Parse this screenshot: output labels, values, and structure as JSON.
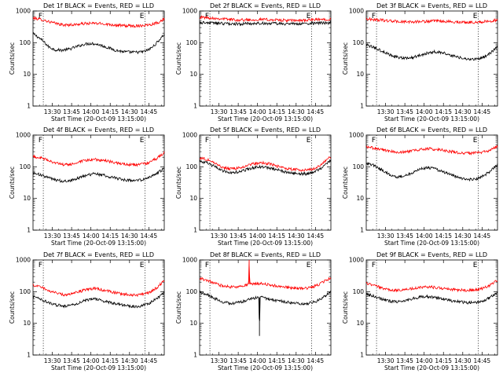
{
  "figure": {
    "tick_times": [
      "13:30",
      "13:45",
      "14:00",
      "14:15",
      "14:30",
      "14:45"
    ],
    "y_ticks": [
      "1",
      "10",
      "100",
      "1000"
    ],
    "y_label": "Counts/sec",
    "x_label": "Start Time (20-Oct-09 13:15:00)",
    "marker_start": "F",
    "marker_end": "E",
    "colors": {
      "events": "#000000",
      "lld": "#ff0000",
      "axes": "#000000"
    }
  },
  "chart_data": [
    {
      "type": "line",
      "title": "Det 1f BLACK = Events, RED = LLD",
      "xlabel": "Start Time (20-Oct-09 13:15:00)",
      "ylabel": "Counts/sec",
      "y_scale": "log",
      "ylim": [
        1,
        1000
      ],
      "x_units": "minutes after 13:15:00",
      "xlim": [
        0,
        102
      ],
      "vlines": [
        8,
        87
      ],
      "series": [
        {
          "name": "Events",
          "color": "#000000",
          "x": [
            0,
            4,
            8,
            12,
            17,
            22,
            28,
            34,
            40,
            46,
            52,
            58,
            64,
            70,
            76,
            82,
            86,
            90,
            94,
            98,
            102
          ],
          "y": [
            190,
            150,
            110,
            75,
            60,
            58,
            62,
            75,
            90,
            95,
            85,
            70,
            58,
            52,
            50,
            50,
            52,
            60,
            80,
            120,
            185
          ]
        },
        {
          "name": "LLD",
          "color": "#ff0000",
          "x": [
            0,
            8,
            16,
            24,
            32,
            40,
            48,
            56,
            64,
            72,
            80,
            86,
            92,
            98,
            102
          ],
          "y": [
            600,
            520,
            420,
            360,
            370,
            400,
            410,
            390,
            360,
            340,
            340,
            350,
            380,
            450,
            560
          ]
        }
      ]
    },
    {
      "type": "line",
      "title": "Det 2f BLACK = Events, RED = LLD",
      "xlabel": "Start Time (20-Oct-09 13:15:00)",
      "ylabel": "Counts/sec",
      "y_scale": "log",
      "ylim": [
        1,
        1000
      ],
      "x_units": "minutes after 13:15:00",
      "xlim": [
        0,
        102
      ],
      "vlines": [
        8,
        87
      ],
      "series": [
        {
          "name": "Events",
          "color": "#000000",
          "x": [
            0,
            10,
            20,
            30,
            40,
            50,
            60,
            70,
            80,
            90,
            102
          ],
          "y": [
            430,
            420,
            400,
            390,
            400,
            410,
            400,
            390,
            395,
            410,
            420
          ]
        },
        {
          "name": "LLD",
          "color": "#ff0000",
          "x": [
            0,
            10,
            20,
            30,
            40,
            50,
            60,
            70,
            80,
            90,
            102
          ],
          "y": [
            640,
            600,
            560,
            520,
            530,
            540,
            520,
            500,
            510,
            530,
            560
          ]
        }
      ]
    },
    {
      "type": "line",
      "title": "Det 3f BLACK = Events, RED = LLD",
      "xlabel": "Start Time (20-Oct-09 13:15:00)",
      "ylabel": "Counts/sec",
      "y_scale": "log",
      "ylim": [
        1,
        1000
      ],
      "x_units": "minutes after 13:15:00",
      "xlim": [
        0,
        102
      ],
      "vlines": [
        8,
        87
      ],
      "series": [
        {
          "name": "Events",
          "color": "#000000",
          "x": [
            0,
            6,
            12,
            18,
            24,
            30,
            36,
            42,
            48,
            54,
            60,
            66,
            72,
            78,
            84,
            90,
            96,
            102
          ],
          "y": [
            85,
            70,
            55,
            42,
            35,
            32,
            34,
            40,
            48,
            52,
            48,
            40,
            34,
            30,
            30,
            33,
            45,
            75
          ]
        },
        {
          "name": "LLD",
          "color": "#ff0000",
          "x": [
            0,
            10,
            20,
            30,
            40,
            50,
            60,
            70,
            80,
            90,
            102
          ],
          "y": [
            560,
            520,
            480,
            450,
            460,
            480,
            470,
            450,
            440,
            450,
            520
          ]
        }
      ]
    },
    {
      "type": "line",
      "title": "Det 4f BLACK = Events, RED = LLD",
      "xlabel": "Start Time (20-Oct-09 13:15:00)",
      "ylabel": "Counts/sec",
      "y_scale": "log",
      "ylim": [
        1,
        1000
      ],
      "x_units": "minutes after 13:15:00",
      "xlim": [
        0,
        102
      ],
      "vlines": [
        8,
        87
      ],
      "series": [
        {
          "name": "Events",
          "color": "#000000",
          "x": [
            0,
            6,
            12,
            18,
            24,
            30,
            36,
            42,
            48,
            54,
            60,
            66,
            72,
            78,
            84,
            90,
            96,
            102
          ],
          "y": [
            65,
            55,
            45,
            38,
            35,
            38,
            45,
            55,
            60,
            55,
            48,
            42,
            38,
            36,
            38,
            45,
            60,
            90
          ]
        },
        {
          "name": "LLD",
          "color": "#ff0000",
          "x": [
            0,
            6,
            12,
            18,
            24,
            30,
            36,
            42,
            48,
            54,
            60,
            66,
            72,
            78,
            84,
            90,
            96,
            102
          ],
          "y": [
            210,
            190,
            160,
            130,
            115,
            120,
            140,
            160,
            170,
            160,
            145,
            130,
            120,
            115,
            118,
            135,
            180,
            280
          ]
        }
      ]
    },
    {
      "type": "line",
      "title": "Det 5f BLACK = Events, RED = LLD",
      "xlabel": "Start Time (20-Oct-09 13:15:00)",
      "ylabel": "Counts/sec",
      "y_scale": "log",
      "ylim": [
        1,
        1000
      ],
      "x_units": "minutes after 13:15:00",
      "xlim": [
        0,
        102
      ],
      "vlines": [
        8,
        87
      ],
      "series": [
        {
          "name": "Events",
          "color": "#000000",
          "x": [
            0,
            6,
            12,
            18,
            24,
            30,
            36,
            42,
            48,
            54,
            60,
            66,
            72,
            78,
            84,
            90,
            96,
            102
          ],
          "y": [
            150,
            130,
            100,
            75,
            65,
            68,
            80,
            95,
            100,
            92,
            80,
            70,
            62,
            60,
            60,
            70,
            100,
            160
          ]
        },
        {
          "name": "LLD",
          "color": "#ff0000",
          "x": [
            0,
            6,
            12,
            18,
            24,
            30,
            36,
            42,
            48,
            54,
            60,
            66,
            72,
            78,
            84,
            90,
            96,
            102
          ],
          "y": [
            190,
            170,
            130,
            95,
            85,
            90,
            105,
            125,
            135,
            125,
            105,
            90,
            82,
            80,
            80,
            90,
            130,
            210
          ]
        }
      ]
    },
    {
      "type": "line",
      "title": "Det 6f BLACK = Events, RED = LLD",
      "xlabel": "Start Time (20-Oct-09 13:15:00)",
      "ylabel": "Counts/sec",
      "y_scale": "log",
      "ylim": [
        1,
        1000
      ],
      "x_units": "minutes after 13:15:00",
      "xlim": [
        0,
        102
      ],
      "vlines": [
        8,
        87
      ],
      "series": [
        {
          "name": "Events",
          "color": "#000000",
          "x": [
            0,
            6,
            12,
            18,
            24,
            30,
            36,
            42,
            48,
            54,
            60,
            66,
            72,
            78,
            84,
            90,
            96,
            102
          ],
          "y": [
            130,
            110,
            80,
            58,
            48,
            52,
            65,
            85,
            95,
            85,
            68,
            55,
            45,
            40,
            40,
            48,
            70,
            120
          ]
        },
        {
          "name": "LLD",
          "color": "#ff0000",
          "x": [
            0,
            8,
            16,
            24,
            32,
            40,
            48,
            56,
            64,
            72,
            80,
            88,
            96,
            102
          ],
          "y": [
            420,
            380,
            320,
            290,
            300,
            340,
            370,
            350,
            310,
            280,
            270,
            280,
            330,
            440
          ]
        }
      ]
    },
    {
      "type": "line",
      "title": "Det 7f BLACK = Events, RED = LLD",
      "xlabel": "Start Time (20-Oct-09 13:15:00)",
      "ylabel": "Counts/sec",
      "y_scale": "log",
      "ylim": [
        1,
        1000
      ],
      "x_units": "minutes after 13:15:00",
      "xlim": [
        0,
        102
      ],
      "vlines": [
        8,
        87
      ],
      "series": [
        {
          "name": "Events",
          "color": "#000000",
          "x": [
            0,
            6,
            12,
            18,
            24,
            30,
            36,
            42,
            48,
            54,
            60,
            66,
            72,
            78,
            84,
            90,
            96,
            102
          ],
          "y": [
            70,
            58,
            45,
            38,
            35,
            38,
            45,
            55,
            58,
            52,
            45,
            40,
            36,
            34,
            35,
            42,
            60,
            95
          ]
        },
        {
          "name": "LLD",
          "color": "#ff0000",
          "x": [
            0,
            6,
            12,
            18,
            24,
            30,
            36,
            42,
            48,
            54,
            60,
            66,
            72,
            78,
            84,
            90,
            96,
            102
          ],
          "y": [
            160,
            140,
            110,
            90,
            80,
            85,
            100,
            120,
            125,
            115,
            100,
            90,
            82,
            78,
            80,
            95,
            130,
            220
          ]
        }
      ]
    },
    {
      "type": "line",
      "title": "Det 8f BLACK = Events, RED = LLD",
      "xlabel": "Start Time (20-Oct-09 13:15:00)",
      "ylabel": "Counts/sec",
      "y_scale": "log",
      "ylim": [
        1,
        1000
      ],
      "x_units": "minutes after 13:15:00",
      "xlim": [
        0,
        102
      ],
      "vlines": [
        8,
        87
      ],
      "series": [
        {
          "name": "Events",
          "color": "#000000",
          "x": [
            0,
            6,
            12,
            18,
            24,
            30,
            36,
            42,
            46,
            46.5,
            47,
            50,
            54,
            60,
            66,
            72,
            78,
            84,
            90,
            96,
            102
          ],
          "y": [
            95,
            80,
            60,
            48,
            42,
            45,
            52,
            62,
            66,
            4,
            66,
            64,
            58,
            52,
            48,
            44,
            42,
            42,
            48,
            65,
            100
          ]
        },
        {
          "name": "LLD",
          "color": "#ff0000",
          "x": [
            0,
            6,
            12,
            18,
            24,
            30,
            36,
            38,
            38.5,
            39,
            42,
            46,
            50,
            54,
            60,
            66,
            72,
            78,
            84,
            90,
            96,
            102
          ],
          "y": [
            260,
            230,
            180,
            150,
            140,
            145,
            160,
            170,
            1000,
            170,
            175,
            180,
            175,
            165,
            150,
            140,
            130,
            125,
            128,
            150,
            200,
            280
          ]
        }
      ]
    },
    {
      "type": "line",
      "title": "Det 9f BLACK = Events, RED = LLD",
      "xlabel": "Start Time (20-Oct-09 13:15:00)",
      "ylabel": "Counts/sec",
      "y_scale": "log",
      "ylim": [
        1,
        1000
      ],
      "x_units": "minutes after 13:15:00",
      "xlim": [
        0,
        102
      ],
      "vlines": [
        8,
        87
      ],
      "series": [
        {
          "name": "Events",
          "color": "#000000",
          "x": [
            0,
            6,
            12,
            18,
            24,
            30,
            36,
            42,
            48,
            54,
            60,
            66,
            72,
            78,
            84,
            90,
            96,
            102
          ],
          "y": [
            85,
            72,
            58,
            50,
            48,
            52,
            60,
            68,
            70,
            65,
            58,
            52,
            48,
            45,
            45,
            50,
            65,
            95
          ]
        },
        {
          "name": "LLD",
          "color": "#ff0000",
          "x": [
            0,
            6,
            12,
            18,
            24,
            30,
            36,
            42,
            48,
            54,
            60,
            66,
            72,
            78,
            84,
            90,
            96,
            102
          ],
          "y": [
            180,
            160,
            130,
            115,
            110,
            115,
            125,
            135,
            140,
            135,
            125,
            118,
            112,
            110,
            112,
            125,
            160,
            230
          ]
        }
      ]
    }
  ]
}
